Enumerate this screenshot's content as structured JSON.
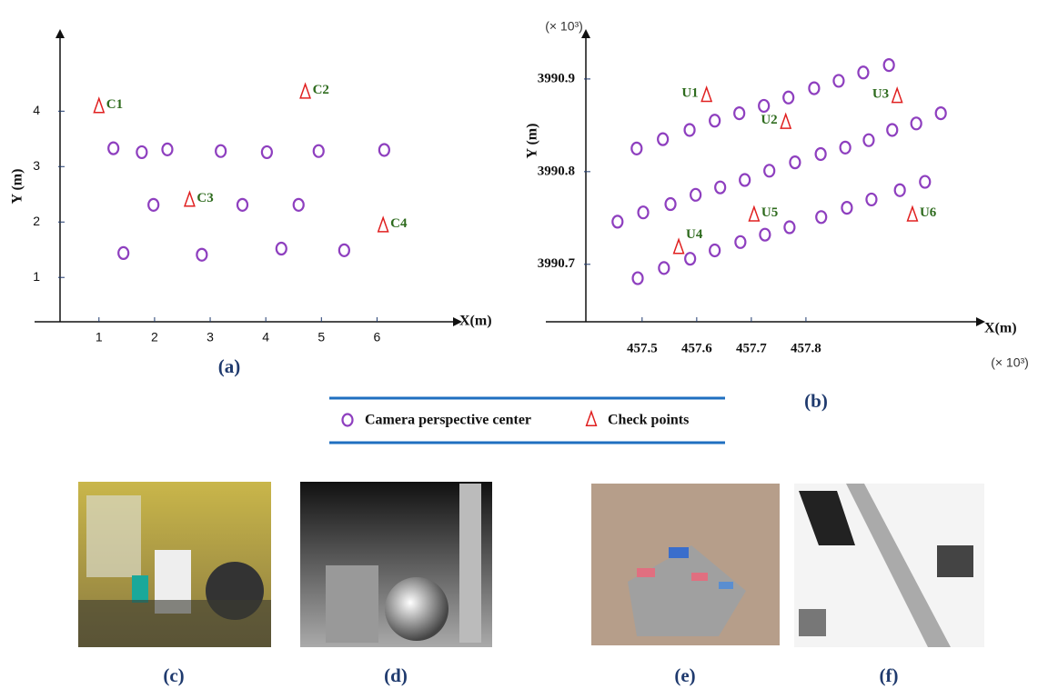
{
  "chart_data": [
    {
      "type": "scatter",
      "caption": "(a)",
      "x_label": "X(m)",
      "y_label": "Y (m)",
      "xlim": [
        0.3,
        7.4
      ],
      "ylim": [
        0.2,
        5.35
      ],
      "xticks": [
        1,
        2,
        3,
        4,
        5,
        6
      ],
      "yticks": [
        1,
        2,
        3,
        4
      ],
      "series": [
        {
          "name": "Camera perspective center",
          "color": "#8e3fbf",
          "marker": "circle",
          "x": [
            1.26,
            1.77,
            2.23,
            3.19,
            4.02,
            4.95,
            6.13,
            1.98,
            3.58,
            4.59,
            1.44,
            2.85,
            4.28,
            5.41
          ],
          "values": [
            3.33,
            3.26,
            3.31,
            3.28,
            3.26,
            3.28,
            3.3,
            2.31,
            2.31,
            2.31,
            1.44,
            1.41,
            1.52,
            1.49
          ]
        },
        {
          "name": "Check points",
          "color": "#e02020",
          "marker": "triangle",
          "label_color": "#2e6b1e",
          "x": [
            1.0,
            4.71,
            2.63,
            6.11
          ],
          "values": [
            4.08,
            4.34,
            2.39,
            1.93
          ],
          "point_labels": [
            "C1",
            "C2",
            "C3",
            "C4"
          ]
        }
      ]
    },
    {
      "type": "scatter",
      "caption": "(b)",
      "x_label": "X(m)",
      "y_label": "Y (m)",
      "x_multiplier": "(× 10³)",
      "y_multiplier": "(× 10³)",
      "xlim": [
        457.397,
        458.115
      ],
      "ylim": [
        3990.638,
        3990.946
      ],
      "xticks": [
        457.5,
        457.6,
        457.7,
        457.8
      ],
      "yticks": [
        3990.7,
        3990.8,
        3990.9
      ],
      "series": [
        {
          "color": "#8e3fbf",
          "marker": "circle",
          "x": [
            457.49,
            457.538,
            457.587,
            457.633,
            457.678,
            457.723,
            457.768,
            457.815,
            457.86,
            457.905,
            457.952,
            457.455,
            457.502,
            457.552,
            457.598,
            457.643,
            457.688,
            457.733,
            457.78,
            457.827,
            457.872,
            457.915,
            457.958,
            458.002,
            458.047,
            457.492,
            457.54,
            457.588,
            457.633,
            457.68,
            457.725,
            457.77,
            457.828,
            457.875,
            457.92,
            457.972,
            458.018
          ],
          "values": [
            3990.825,
            3990.835,
            3990.845,
            3990.855,
            3990.863,
            3990.871,
            3990.88,
            3990.89,
            3990.898,
            3990.907,
            3990.915,
            3990.746,
            3990.756,
            3990.765,
            3990.775,
            3990.783,
            3990.791,
            3990.801,
            3990.81,
            3990.819,
            3990.826,
            3990.834,
            3990.845,
            3990.852,
            3990.863,
            3990.685,
            3990.696,
            3990.706,
            3990.715,
            3990.724,
            3990.732,
            3990.74,
            3990.751,
            3990.761,
            3990.77,
            3990.78,
            3990.789
          ]
        },
        {
          "color": "#e02020",
          "marker": "triangle",
          "label_color": "#2e6b1e",
          "x": [
            457.618,
            457.763,
            457.967,
            457.567,
            457.705,
            457.995
          ],
          "values": [
            3990.882,
            3990.853,
            3990.881,
            3990.718,
            3990.753,
            3990.753
          ],
          "point_labels": [
            "U1",
            "U2",
            "U3",
            "U4",
            "U5",
            "U6"
          ]
        }
      ]
    }
  ],
  "images": {
    "captions": [
      "(c)",
      "(d)",
      "(e)",
      "(f)"
    ]
  }
}
